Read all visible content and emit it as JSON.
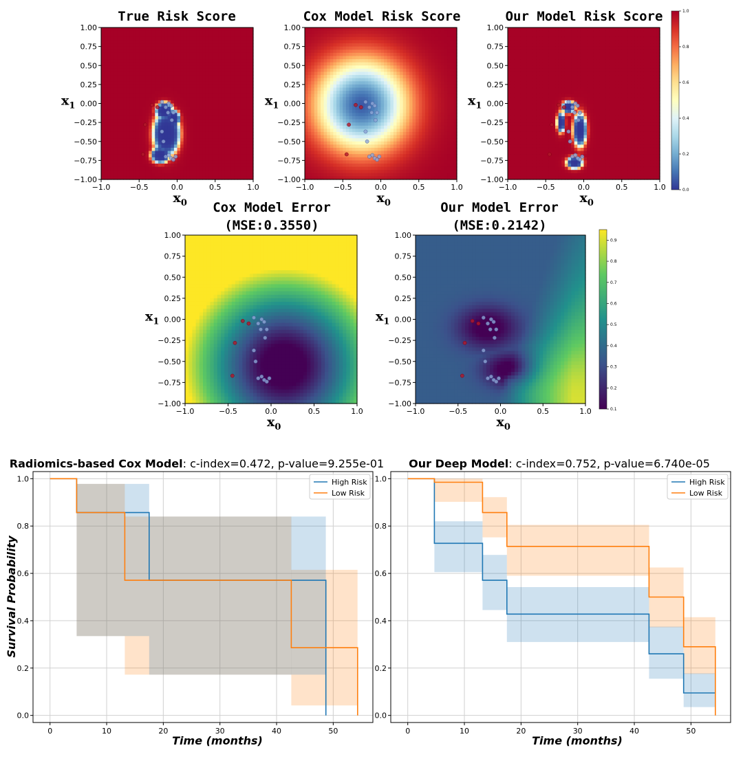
{
  "figure": {
    "heatmaps": {
      "axis_ticks": [
        "1.00",
        "0.75",
        "0.50",
        "0.25",
        "0.00",
        "−0.25",
        "−0.50",
        "−0.75",
        "−1.00"
      ],
      "x_ticks": [
        "−1.0",
        "−0.5",
        "0.0",
        "0.5",
        "1.0"
      ],
      "xlabel": "x",
      "xlabel_sub": "0",
      "ylabel": "x",
      "ylabel_sub": "1",
      "risk_colorbar_ticks": [
        "1.0",
        "0.8",
        "0.6",
        "0.4",
        "0.2",
        "0.0"
      ],
      "error_colorbar_ticks": [
        "0.9",
        "0.8",
        "0.7",
        "0.6",
        "0.5",
        "0.4",
        "0.3",
        "0.2",
        "0.1"
      ],
      "panels": [
        {
          "title": "True Risk Score",
          "subtitle": "",
          "colormap": "RdYlBu_r"
        },
        {
          "title": "Cox Model Risk Score",
          "subtitle": "",
          "colormap": "RdYlBu_r"
        },
        {
          "title": "Our Model Risk Score",
          "subtitle": "",
          "colormap": "RdYlBu_r"
        },
        {
          "title": "Cox Model Error",
          "subtitle": "(MSE:0.3550)",
          "colormap": "viridis"
        },
        {
          "title": "Our Model Error",
          "subtitle": "(MSE:0.2142)",
          "colormap": "viridis"
        }
      ]
    },
    "survival": {
      "ylabel": "Survival Probability",
      "xlabel": "Time (months)",
      "y_ticks": [
        "0.0",
        "0.2",
        "0.4",
        "0.6",
        "0.8",
        "1.0"
      ],
      "x_ticks": [
        "0",
        "10",
        "20",
        "30",
        "40",
        "50"
      ],
      "legend": {
        "high": "High Risk",
        "low": "Low Risk"
      },
      "panels": [
        {
          "title_bold": "Radiomics-based Cox Model",
          "title_rest": ": c-index=0.472, p-value=9.255e-01"
        },
        {
          "title_bold": "Our Deep Model",
          "title_rest": ": c-index=0.752, p-value=6.740e-05"
        }
      ]
    }
  },
  "chart_data": [
    {
      "type": "heatmap",
      "title": "True Risk Score",
      "xlabel": "x0",
      "ylabel": "x1",
      "xlim": [
        -1,
        1
      ],
      "ylim": [
        -1,
        1
      ],
      "colorbar_range": [
        0,
        1
      ],
      "description": "high risk (1.0) everywhere except a low-risk blob around (-0.15, -0.4)"
    },
    {
      "type": "heatmap",
      "title": "Cox Model Risk Score",
      "xlabel": "x0",
      "ylabel": "x1",
      "xlim": [
        -1,
        1
      ],
      "ylim": [
        -1,
        1
      ],
      "colorbar_range": [
        0,
        1
      ],
      "description": "radial gradient centered near (-0.25, 0.0)"
    },
    {
      "type": "heatmap",
      "title": "Our Model Risk Score",
      "xlabel": "x0",
      "ylabel": "x1",
      "xlim": [
        -1,
        1
      ],
      "ylim": [
        -1,
        1
      ],
      "colorbar_range": [
        0,
        1
      ]
    },
    {
      "type": "heatmap",
      "title": "Cox Model Error (MSE:0.3550)",
      "xlabel": "x0",
      "ylabel": "x1",
      "xlim": [
        -1,
        1
      ],
      "ylim": [
        -1,
        1
      ],
      "colorbar_range": [
        0.1,
        0.95
      ]
    },
    {
      "type": "heatmap",
      "title": "Our Model Error (MSE:0.2142)",
      "xlabel": "x0",
      "ylabel": "x1",
      "xlim": [
        -1,
        1
      ],
      "ylim": [
        -1,
        1
      ],
      "colorbar_range": [
        0.1,
        0.95
      ]
    },
    {
      "type": "line",
      "title": "Radiomics-based Cox Model: c-index=0.472, p-value=9.255e-01",
      "xlabel": "Time (months)",
      "ylabel": "Survival Probability",
      "xlim": [
        -3,
        57
      ],
      "ylim": [
        -0.03,
        1.03
      ],
      "series": [
        {
          "name": "High Risk",
          "color": "#1f77b4",
          "steps": [
            [
              0,
              1.0
            ],
            [
              4.7,
              0.857
            ],
            [
              17.5,
              0.571
            ],
            [
              48.7,
              0.0
            ]
          ],
          "end": 48.7,
          "ci": [
            [
              4.7,
              0.335,
              0.978
            ],
            [
              13.2,
              0.335,
              0.978
            ],
            [
              17.5,
              0.172,
              0.84
            ],
            [
              42.6,
              0.172,
              0.84
            ],
            [
              48.7,
              0.172,
              0.84
            ]
          ]
        },
        {
          "name": "Low Risk",
          "color": "#ff7f0e",
          "steps": [
            [
              0,
              1.0
            ],
            [
              4.7,
              0.857
            ],
            [
              13.2,
              0.571
            ],
            [
              42.6,
              0.286
            ],
            [
              54.3,
              0.0
            ]
          ],
          "end": 54.3,
          "ci": [
            [
              4.7,
              0.335,
              0.978
            ],
            [
              13.2,
              0.172,
              0.84
            ],
            [
              42.6,
              0.042,
              0.615
            ],
            [
              54.3,
              0.042,
              0.615
            ]
          ]
        }
      ]
    },
    {
      "type": "line",
      "title": "Our Deep Model: c-index=0.752, p-value=6.740e-05",
      "xlabel": "Time (months)",
      "ylabel": "",
      "xlim": [
        -3,
        57
      ],
      "ylim": [
        -0.03,
        1.03
      ],
      "series": [
        {
          "name": "High Risk",
          "color": "#1f77b4",
          "steps": [
            [
              0,
              1.0
            ],
            [
              4.7,
              0.727
            ],
            [
              13.2,
              0.571
            ],
            [
              17.5,
              0.428
            ],
            [
              42.6,
              0.26
            ],
            [
              48.7,
              0.095
            ]
          ],
          "end": 54.3,
          "ci": [
            [
              4.7,
              0.605,
              0.82
            ],
            [
              13.2,
              0.445,
              0.678
            ],
            [
              17.5,
              0.31,
              0.542
            ],
            [
              42.6,
              0.155,
              0.375
            ],
            [
              48.7,
              0.035,
              0.178
            ],
            [
              54.3,
              0.035,
              0.178
            ]
          ]
        },
        {
          "name": "Low Risk",
          "color": "#ff7f0e",
          "steps": [
            [
              0,
              1.0
            ],
            [
              4.7,
              0.985
            ],
            [
              13.2,
              0.857
            ],
            [
              17.5,
              0.714
            ],
            [
              42.6,
              0.5
            ],
            [
              48.7,
              0.29
            ],
            [
              54.3,
              0.0
            ]
          ],
          "end": 54.3,
          "ci": [
            [
              4.7,
              0.902,
              1.0
            ],
            [
              13.2,
              0.752,
              0.922
            ],
            [
              17.5,
              0.59,
              0.805
            ],
            [
              42.6,
              0.372,
              0.625
            ],
            [
              48.7,
              0.175,
              0.415
            ],
            [
              54.3,
              0.175,
              0.415
            ]
          ]
        }
      ]
    }
  ]
}
